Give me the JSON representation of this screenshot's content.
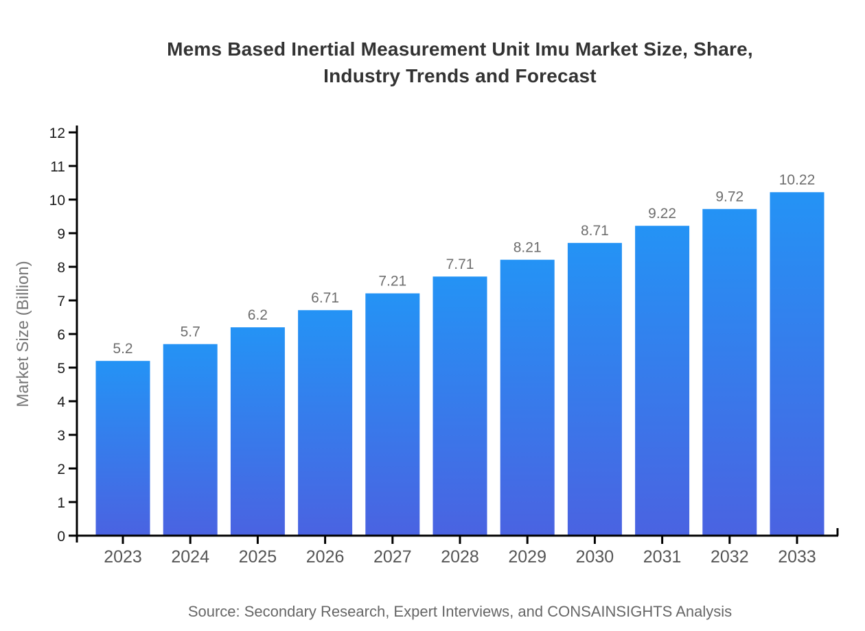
{
  "title": {
    "line1": "Mems Based Inertial Measurement Unit Imu Market Size, Share,",
    "line2": "Industry Trends and Forecast"
  },
  "source_caption": "Source: Secondary Research, Expert Interviews, and CONSAINSIGHTS Analysis",
  "chart_data": {
    "type": "bar",
    "title": "Mems Based Inertial Measurement Unit Imu Market Size, Share, Industry Trends and Forecast",
    "categories": [
      "2023",
      "2024",
      "2025",
      "2026",
      "2027",
      "2028",
      "2029",
      "2030",
      "2031",
      "2032",
      "2033"
    ],
    "values": [
      5.2,
      5.7,
      6.2,
      6.71,
      7.21,
      7.71,
      8.21,
      8.71,
      9.22,
      9.72,
      10.22
    ],
    "value_labels": [
      "5.2",
      "5.7",
      "6.2",
      "6.71",
      "7.21",
      "7.71",
      "8.21",
      "8.71",
      "9.22",
      "9.72",
      "10.22"
    ],
    "xlabel": "",
    "ylabel": "Market Size (Billion)",
    "ylim": [
      0,
      12
    ],
    "ytick_step": 1,
    "grid": false,
    "legend": false,
    "bar_labels_shown": true
  },
  "colors": {
    "bar_gradient_top": "#2493f5",
    "bar_gradient_bottom": "#4a63e1",
    "axis": "#000000",
    "y_tick_label": "#1a1a1a",
    "x_tick_label": "#555555",
    "value_label": "#6e6e6e",
    "title": "#333333",
    "y_axis_title": "#777777",
    "source": "#666666"
  }
}
